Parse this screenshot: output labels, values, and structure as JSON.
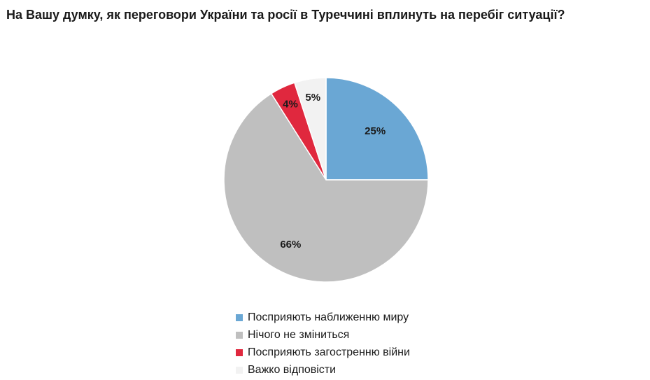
{
  "chart_data": {
    "type": "pie",
    "title": "На Вашу думку, як переговори України та росії в Туреччині вплинуть на перебіг ситуації?",
    "slices": [
      {
        "label": "Посприяють наближенню миру",
        "value": 25,
        "display": "25%",
        "color": "#6aa7d4"
      },
      {
        "label": "Нічого не зміниться",
        "value": 66,
        "display": "66%",
        "color": "#bfbfbf"
      },
      {
        "label": "Посприяють загостренню війни",
        "value": 4,
        "display": "4%",
        "color": "#e0283e"
      },
      {
        "label": "Важко відповісти",
        "value": 5,
        "display": "5%",
        "color": "#f2f2f2"
      }
    ],
    "legend_position": "bottom"
  }
}
